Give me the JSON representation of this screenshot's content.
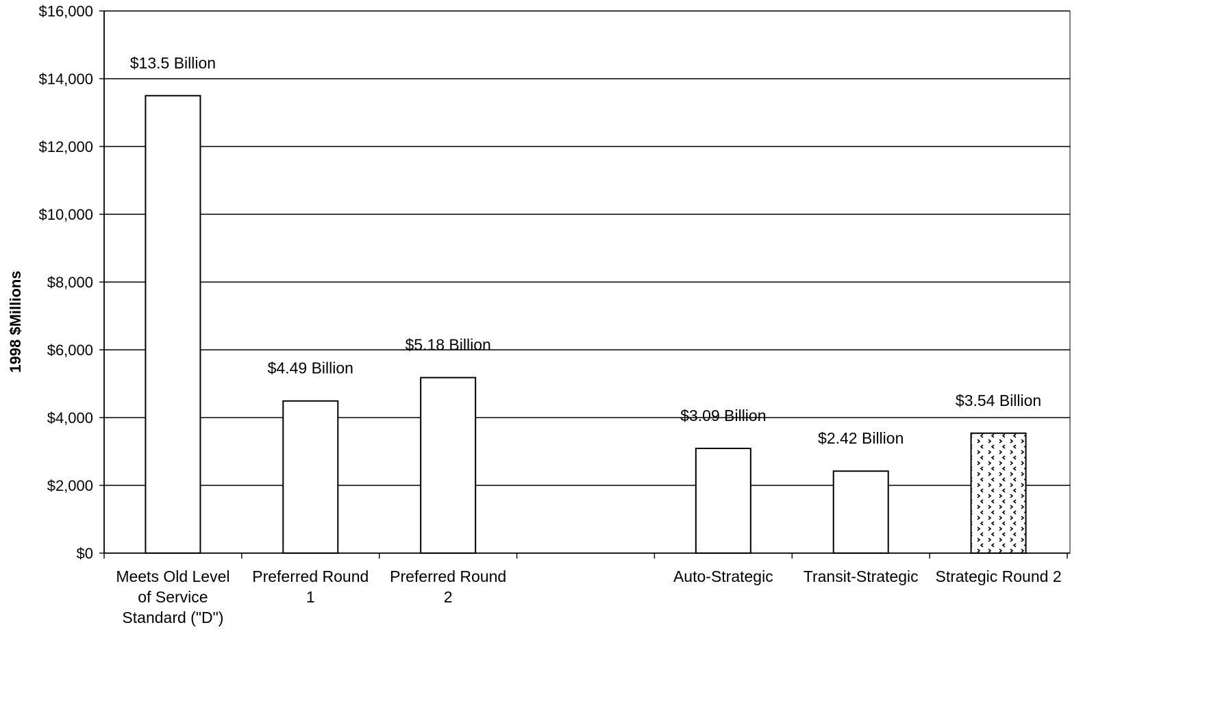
{
  "chart_data": {
    "type": "bar",
    "title": "",
    "xlabel": "",
    "ylabel": "1998 $Millions",
    "ylim": [
      0,
      16000
    ],
    "yticks": [
      0,
      2000,
      4000,
      6000,
      8000,
      10000,
      12000,
      14000,
      16000
    ],
    "ytick_labels": [
      "$0",
      "$2,000",
      "$4,000",
      "$6,000",
      "$8,000",
      "$10,000",
      "$12,000",
      "$14,000",
      "$16,000"
    ],
    "grid": true,
    "legend": "none",
    "slots": 7,
    "categories": [
      {
        "slot": 0,
        "label_lines": [
          "Meets Old Level",
          "of Service",
          "Standard (\"D\")"
        ],
        "value": 13500,
        "data_label": "$13.5 Billion",
        "pattern": "plain"
      },
      {
        "slot": 1,
        "label_lines": [
          "Preferred Round",
          "1"
        ],
        "value": 4490,
        "data_label": "$4.49 Billion",
        "pattern": "plain"
      },
      {
        "slot": 2,
        "label_lines": [
          "Preferred Round",
          "2"
        ],
        "value": 5180,
        "data_label": "$5.18 Billion",
        "pattern": "plain"
      },
      {
        "slot": 4,
        "label_lines": [
          "Auto-Strategic"
        ],
        "value": 3090,
        "data_label": "$3.09 Billion",
        "pattern": "plain"
      },
      {
        "slot": 5,
        "label_lines": [
          "Transit-Strategic"
        ],
        "value": 2420,
        "data_label": "$2.42 Billion",
        "pattern": "plain"
      },
      {
        "slot": 6,
        "label_lines": [
          "Strategic Round 2"
        ],
        "value": 3540,
        "data_label": "$3.54 Billion",
        "pattern": "dotted"
      }
    ],
    "colors": {
      "bar_fill": "#ffffff",
      "bar_stroke": "#000000",
      "grid": "#000000",
      "pattern_mark": "#000000"
    }
  }
}
